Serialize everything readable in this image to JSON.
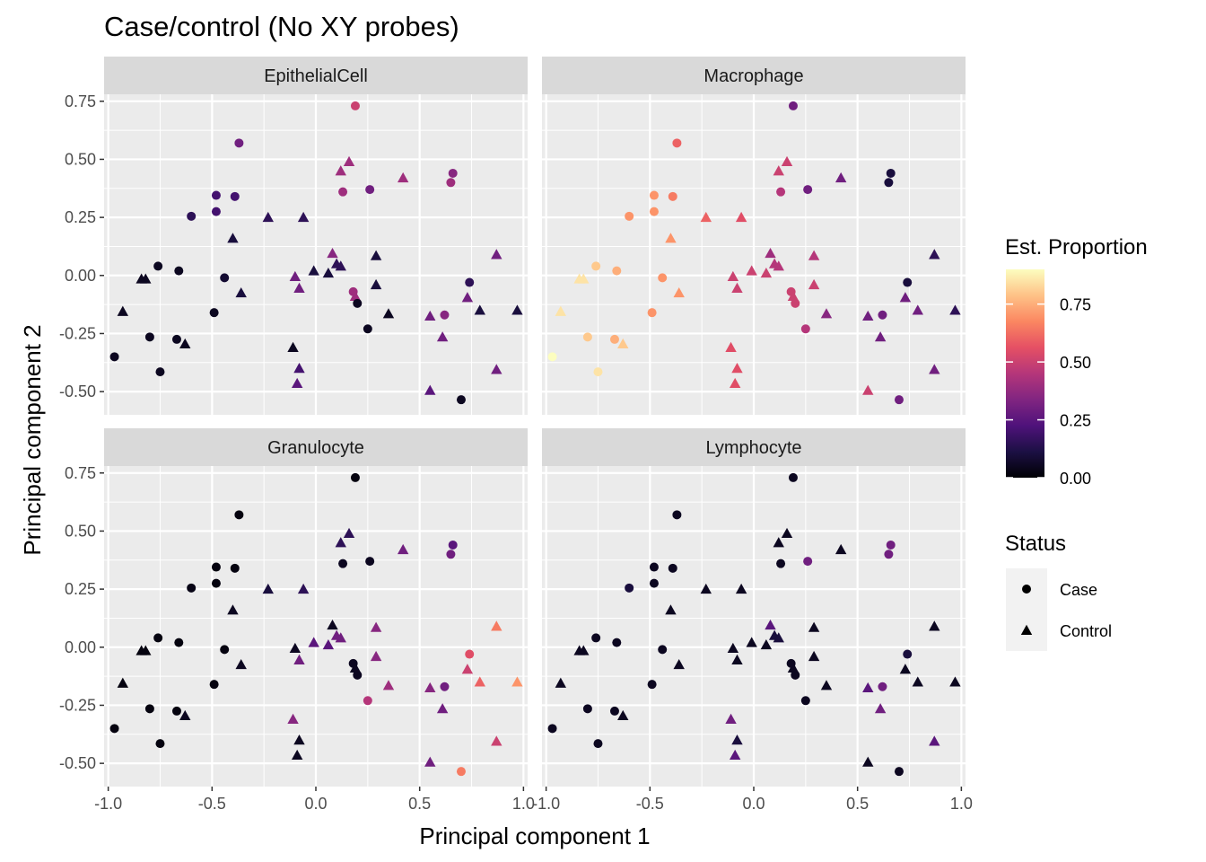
{
  "chart_data": {
    "type": "scatter",
    "title": "Case/control (No XY probes)",
    "xlabel": "Principal component 1",
    "ylabel": "Principal component 2",
    "xlim": [
      -1.02,
      1.02
    ],
    "ylim": [
      -0.6,
      0.78
    ],
    "x_ticks": [
      -1.0,
      -0.5,
      0.0,
      0.5,
      1.0
    ],
    "x_tick_labels": [
      "-1.0",
      "-0.5",
      "0.0",
      "0.5",
      "1.0"
    ],
    "y_ticks": [
      -0.5,
      -0.25,
      0.0,
      0.25,
      0.5,
      0.75
    ],
    "y_tick_labels": [
      "-0.50",
      "-0.25",
      "0.00",
      "0.25",
      "0.50",
      "0.75"
    ],
    "grid": true,
    "facets": [
      "EpithelialCell",
      "Macrophage",
      "Granulocyte",
      "Lymphocyte"
    ],
    "points": [
      {
        "x": 0.19,
        "y": 0.73,
        "status": "Case",
        "EpithelialCell": 0.5,
        "Macrophage": 0.3,
        "Granulocyte": 0.02,
        "Lymphocyte": 0.05
      },
      {
        "x": -0.37,
        "y": 0.57,
        "status": "Case",
        "EpithelialCell": 0.3,
        "Macrophage": 0.6,
        "Granulocyte": 0.02,
        "Lymphocyte": 0.05
      },
      {
        "x": 0.16,
        "y": 0.49,
        "status": "Control",
        "EpithelialCell": 0.4,
        "Macrophage": 0.5,
        "Granulocyte": 0.15,
        "Lymphocyte": 0.05
      },
      {
        "x": 0.12,
        "y": 0.45,
        "status": "Control",
        "EpithelialCell": 0.4,
        "Macrophage": 0.5,
        "Granulocyte": 0.15,
        "Lymphocyte": 0.05
      },
      {
        "x": 0.66,
        "y": 0.44,
        "status": "Case",
        "EpithelialCell": 0.35,
        "Macrophage": 0.1,
        "Granulocyte": 0.25,
        "Lymphocyte": 0.3
      },
      {
        "x": 0.42,
        "y": 0.42,
        "status": "Control",
        "EpithelialCell": 0.4,
        "Macrophage": 0.3,
        "Granulocyte": 0.3,
        "Lymphocyte": 0.05
      },
      {
        "x": 0.65,
        "y": 0.4,
        "status": "Case",
        "EpithelialCell": 0.4,
        "Macrophage": 0.1,
        "Granulocyte": 0.3,
        "Lymphocyte": 0.3
      },
      {
        "x": 0.26,
        "y": 0.37,
        "status": "Case",
        "EpithelialCell": 0.3,
        "Macrophage": 0.3,
        "Granulocyte": 0.05,
        "Lymphocyte": 0.3
      },
      {
        "x": 0.13,
        "y": 0.36,
        "status": "Case",
        "EpithelialCell": 0.4,
        "Macrophage": 0.45,
        "Granulocyte": 0.05,
        "Lymphocyte": 0.05
      },
      {
        "x": -0.48,
        "y": 0.345,
        "status": "Case",
        "EpithelialCell": 0.2,
        "Macrophage": 0.7,
        "Granulocyte": 0.02,
        "Lymphocyte": 0.05
      },
      {
        "x": -0.39,
        "y": 0.34,
        "status": "Case",
        "EpithelialCell": 0.2,
        "Macrophage": 0.65,
        "Granulocyte": 0.02,
        "Lymphocyte": 0.05
      },
      {
        "x": -0.48,
        "y": 0.275,
        "status": "Case",
        "EpithelialCell": 0.2,
        "Macrophage": 0.7,
        "Granulocyte": 0.02,
        "Lymphocyte": 0.05
      },
      {
        "x": -0.6,
        "y": 0.255,
        "status": "Case",
        "EpithelialCell": 0.15,
        "Macrophage": 0.7,
        "Granulocyte": 0.03,
        "Lymphocyte": 0.1
      },
      {
        "x": -0.23,
        "y": 0.25,
        "status": "Control",
        "EpithelialCell": 0.15,
        "Macrophage": 0.6,
        "Granulocyte": 0.1,
        "Lymphocyte": 0.05
      },
      {
        "x": -0.06,
        "y": 0.25,
        "status": "Control",
        "EpithelialCell": 0.15,
        "Macrophage": 0.55,
        "Granulocyte": 0.15,
        "Lymphocyte": 0.05
      },
      {
        "x": -0.4,
        "y": 0.16,
        "status": "Control",
        "EpithelialCell": 0.1,
        "Macrophage": 0.7,
        "Granulocyte": 0.05,
        "Lymphocyte": 0.05
      },
      {
        "x": 0.87,
        "y": 0.09,
        "status": "Control",
        "EpithelialCell": 0.3,
        "Macrophage": 0.15,
        "Granulocyte": 0.65,
        "Lymphocyte": 0.05
      },
      {
        "x": 0.08,
        "y": 0.095,
        "status": "Control",
        "EpithelialCell": 0.35,
        "Macrophage": 0.4,
        "Granulocyte": 0.05,
        "Lymphocyte": 0.25
      },
      {
        "x": 0.29,
        "y": 0.085,
        "status": "Control",
        "EpithelialCell": 0.1,
        "Macrophage": 0.45,
        "Granulocyte": 0.35,
        "Lymphocyte": 0.05
      },
      {
        "x": 0.1,
        "y": 0.05,
        "status": "Control",
        "EpithelialCell": 0.15,
        "Macrophage": 0.45,
        "Granulocyte": 0.3,
        "Lymphocyte": 0.1
      },
      {
        "x": 0.12,
        "y": 0.04,
        "status": "Control",
        "EpithelialCell": 0.15,
        "Macrophage": 0.45,
        "Granulocyte": 0.3,
        "Lymphocyte": 0.1
      },
      {
        "x": -0.76,
        "y": 0.04,
        "status": "Case",
        "EpithelialCell": 0.05,
        "Macrophage": 0.8,
        "Granulocyte": 0.02,
        "Lymphocyte": 0.05
      },
      {
        "x": -0.66,
        "y": 0.02,
        "status": "Case",
        "EpithelialCell": 0.05,
        "Macrophage": 0.75,
        "Granulocyte": 0.02,
        "Lymphocyte": 0.05
      },
      {
        "x": -0.01,
        "y": 0.02,
        "status": "Control",
        "EpithelialCell": 0.1,
        "Macrophage": 0.5,
        "Granulocyte": 0.25,
        "Lymphocyte": 0.05
      },
      {
        "x": 0.06,
        "y": 0.01,
        "status": "Control",
        "EpithelialCell": 0.1,
        "Macrophage": 0.5,
        "Granulocyte": 0.25,
        "Lymphocyte": 0.05
      },
      {
        "x": -0.1,
        "y": -0.005,
        "status": "Control",
        "EpithelialCell": 0.3,
        "Macrophage": 0.5,
        "Granulocyte": 0.05,
        "Lymphocyte": 0.05
      },
      {
        "x": -0.44,
        "y": -0.01,
        "status": "Case",
        "EpithelialCell": 0.08,
        "Macrophage": 0.7,
        "Granulocyte": 0.02,
        "Lymphocyte": 0.05
      },
      {
        "x": -0.84,
        "y": -0.015,
        "status": "Control",
        "EpithelialCell": 0.05,
        "Macrophage": 0.85,
        "Granulocyte": 0.02,
        "Lymphocyte": 0.05
      },
      {
        "x": -0.82,
        "y": -0.015,
        "status": "Control",
        "EpithelialCell": 0.05,
        "Macrophage": 0.85,
        "Granulocyte": 0.02,
        "Lymphocyte": 0.05
      },
      {
        "x": 0.74,
        "y": -0.03,
        "status": "Case",
        "EpithelialCell": 0.15,
        "Macrophage": 0.1,
        "Granulocyte": 0.55,
        "Lymphocyte": 0.1
      },
      {
        "x": 0.29,
        "y": -0.04,
        "status": "Control",
        "EpithelialCell": 0.1,
        "Macrophage": 0.5,
        "Granulocyte": 0.35,
        "Lymphocyte": 0.05
      },
      {
        "x": -0.08,
        "y": -0.055,
        "status": "Control",
        "EpithelialCell": 0.3,
        "Macrophage": 0.5,
        "Granulocyte": 0.3,
        "Lymphocyte": 0.05
      },
      {
        "x": 0.18,
        "y": -0.07,
        "status": "Case",
        "EpithelialCell": 0.4,
        "Macrophage": 0.5,
        "Granulocyte": 0.05,
        "Lymphocyte": 0.05
      },
      {
        "x": -0.36,
        "y": -0.075,
        "status": "Control",
        "EpithelialCell": 0.1,
        "Macrophage": 0.7,
        "Granulocyte": 0.05,
        "Lymphocyte": 0.05
      },
      {
        "x": 0.73,
        "y": -0.095,
        "status": "Control",
        "EpithelialCell": 0.3,
        "Macrophage": 0.3,
        "Granulocyte": 0.5,
        "Lymphocyte": 0.05
      },
      {
        "x": 0.19,
        "y": -0.09,
        "status": "Control",
        "EpithelialCell": 0.4,
        "Macrophage": 0.5,
        "Granulocyte": 0.05,
        "Lymphocyte": 0.05
      },
      {
        "x": 0.2,
        "y": -0.12,
        "status": "Case",
        "EpithelialCell": 0.05,
        "Macrophage": 0.5,
        "Granulocyte": 0.05,
        "Lymphocyte": 0.05
      },
      {
        "x": 0.79,
        "y": -0.15,
        "status": "Control",
        "EpithelialCell": 0.1,
        "Macrophage": 0.3,
        "Granulocyte": 0.6,
        "Lymphocyte": 0.05
      },
      {
        "x": 0.97,
        "y": -0.15,
        "status": "Control",
        "EpithelialCell": 0.1,
        "Macrophage": 0.15,
        "Granulocyte": 0.7,
        "Lymphocyte": 0.05
      },
      {
        "x": -0.93,
        "y": -0.155,
        "status": "Control",
        "EpithelialCell": 0.05,
        "Macrophage": 0.85,
        "Granulocyte": 0.02,
        "Lymphocyte": 0.05
      },
      {
        "x": -0.49,
        "y": -0.16,
        "status": "Case",
        "EpithelialCell": 0.05,
        "Macrophage": 0.7,
        "Granulocyte": 0.02,
        "Lymphocyte": 0.05
      },
      {
        "x": 0.35,
        "y": -0.165,
        "status": "Control",
        "EpithelialCell": 0.05,
        "Macrophage": 0.35,
        "Granulocyte": 0.4,
        "Lymphocyte": 0.05
      },
      {
        "x": 0.55,
        "y": -0.175,
        "status": "Control",
        "EpithelialCell": 0.3,
        "Macrophage": 0.3,
        "Granulocyte": 0.35,
        "Lymphocyte": 0.25
      },
      {
        "x": 0.62,
        "y": -0.17,
        "status": "Case",
        "EpithelialCell": 0.35,
        "Macrophage": 0.3,
        "Granulocyte": 0.3,
        "Lymphocyte": 0.3
      },
      {
        "x": 0.25,
        "y": -0.23,
        "status": "Case",
        "EpithelialCell": 0.05,
        "Macrophage": 0.45,
        "Granulocyte": 0.45,
        "Lymphocyte": 0.05
      },
      {
        "x": 0.61,
        "y": -0.265,
        "status": "Control",
        "EpithelialCell": 0.3,
        "Macrophage": 0.3,
        "Granulocyte": 0.3,
        "Lymphocyte": 0.3
      },
      {
        "x": -0.8,
        "y": -0.265,
        "status": "Case",
        "EpithelialCell": 0.05,
        "Macrophage": 0.8,
        "Granulocyte": 0.02,
        "Lymphocyte": 0.05
      },
      {
        "x": -0.67,
        "y": -0.275,
        "status": "Case",
        "EpithelialCell": 0.05,
        "Macrophage": 0.75,
        "Granulocyte": 0.02,
        "Lymphocyte": 0.05
      },
      {
        "x": -0.63,
        "y": -0.295,
        "status": "Control",
        "EpithelialCell": 0.05,
        "Macrophage": 0.8,
        "Granulocyte": 0.05,
        "Lymphocyte": 0.05
      },
      {
        "x": -0.11,
        "y": -0.31,
        "status": "Control",
        "EpithelialCell": 0.05,
        "Macrophage": 0.55,
        "Granulocyte": 0.35,
        "Lymphocyte": 0.3
      },
      {
        "x": -0.97,
        "y": -0.35,
        "status": "Case",
        "EpithelialCell": 0.05,
        "Macrophage": 0.9,
        "Granulocyte": 0.02,
        "Lymphocyte": 0.05
      },
      {
        "x": -0.08,
        "y": -0.4,
        "status": "Control",
        "EpithelialCell": 0.2,
        "Macrophage": 0.55,
        "Granulocyte": 0.05,
        "Lymphocyte": 0.1
      },
      {
        "x": 0.87,
        "y": -0.405,
        "status": "Control",
        "EpithelialCell": 0.3,
        "Macrophage": 0.3,
        "Granulocyte": 0.5,
        "Lymphocyte": 0.25
      },
      {
        "x": -0.75,
        "y": -0.415,
        "status": "Case",
        "EpithelialCell": 0.05,
        "Macrophage": 0.85,
        "Granulocyte": 0.02,
        "Lymphocyte": 0.05
      },
      {
        "x": -0.09,
        "y": -0.465,
        "status": "Control",
        "EpithelialCell": 0.25,
        "Macrophage": 0.55,
        "Granulocyte": 0.05,
        "Lymphocyte": 0.25
      },
      {
        "x": 0.55,
        "y": -0.495,
        "status": "Control",
        "EpithelialCell": 0.25,
        "Macrophage": 0.5,
        "Granulocyte": 0.3,
        "Lymphocyte": 0.05
      },
      {
        "x": 0.7,
        "y": -0.535,
        "status": "Case",
        "EpithelialCell": 0.05,
        "Macrophage": 0.3,
        "Granulocyte": 0.65,
        "Lymphocyte": 0.05
      }
    ],
    "legend": {
      "placement": "right",
      "colorbar": {
        "title": "Est. Proportion",
        "range": [
          0,
          0.9
        ],
        "ticks": [
          0,
          0.25,
          0.5,
          0.75
        ],
        "tick_labels": [
          "0.00",
          "0.25",
          "0.50",
          "0.75"
        ],
        "colormap": "magma",
        "stops": [
          "#000004",
          "#1c1044",
          "#4f127b",
          "#812581",
          "#b5367a",
          "#e55064",
          "#fb8761",
          "#fec287",
          "#fcfdbf"
        ]
      },
      "shape": {
        "title": "Status",
        "entries": [
          {
            "label": "Case",
            "shape": "circle"
          },
          {
            "label": "Control",
            "shape": "triangle"
          }
        ]
      }
    }
  }
}
